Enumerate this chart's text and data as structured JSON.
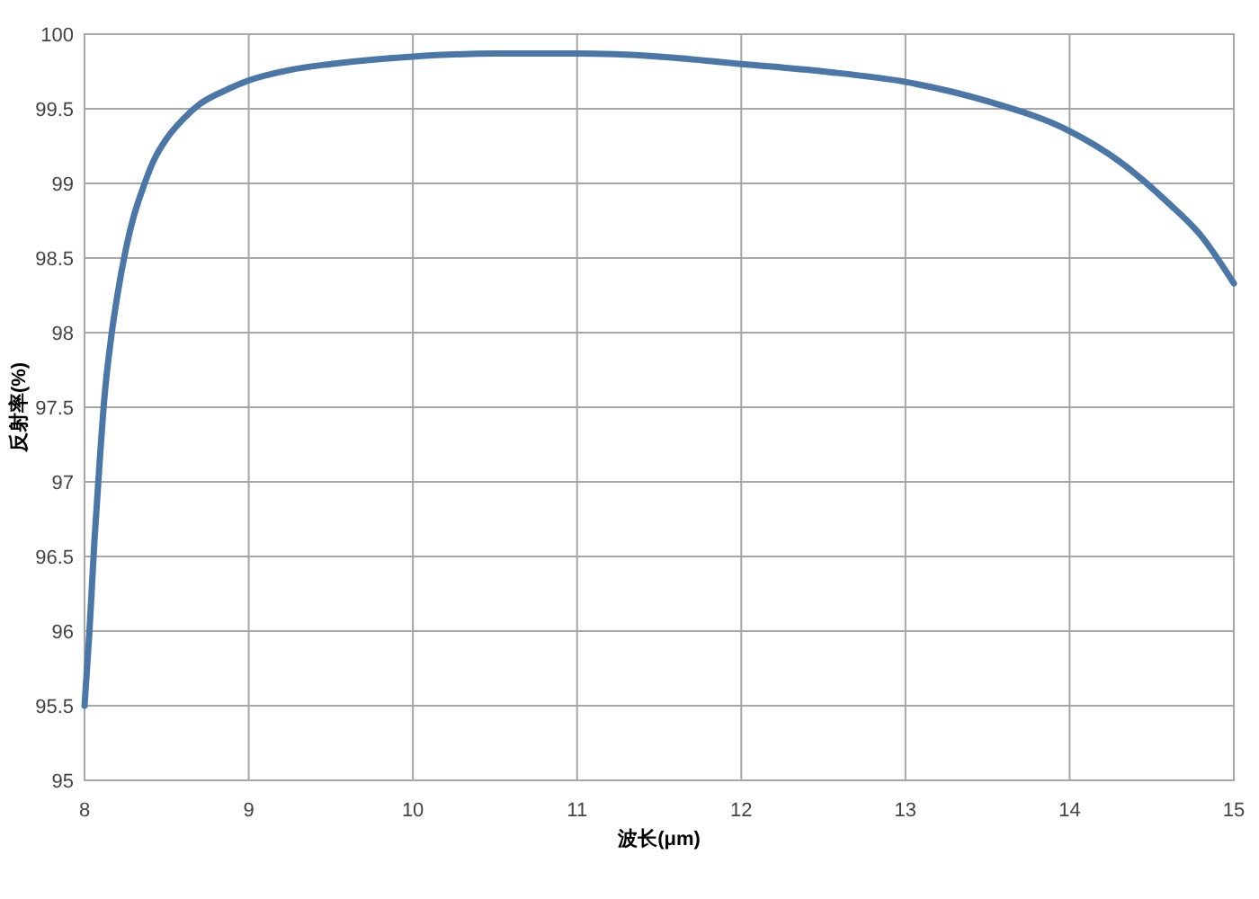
{
  "chart_data": {
    "type": "line",
    "xlabel": "波长(μm)",
    "ylabel": "反射率(%)",
    "x": [
      8,
      8.03,
      8.06,
      8.09,
      8.12,
      8.16,
      8.2,
      8.25,
      8.3,
      8.35,
      8.42,
      8.5,
      8.6,
      8.7,
      8.85,
      9,
      9.25,
      9.5,
      10,
      10.5,
      11,
      11.5,
      12,
      12.5,
      13,
      13.5,
      14,
      14.3,
      14.6,
      14.8,
      15
    ],
    "series": [
      {
        "color": "#4a76a8",
        "values": [
          95.5,
          96,
          96.6,
          97.1,
          97.55,
          97.95,
          98.25,
          98.55,
          98.78,
          98.95,
          99.15,
          99.3,
          99.43,
          99.53,
          99.62,
          99.69,
          99.76,
          99.8,
          99.85,
          99.87,
          99.87,
          99.85,
          99.8,
          99.75,
          99.68,
          99.55,
          99.35,
          99.15,
          98.87,
          98.65,
          98.33
        ]
      }
    ],
    "xlim": [
      8,
      15
    ],
    "xticks": [
      8,
      9,
      10,
      11,
      12,
      13,
      14,
      15
    ],
    "ylim": [
      95,
      100
    ],
    "yticks": [
      95,
      95.5,
      96,
      96.5,
      97,
      97.5,
      98,
      98.5,
      99,
      99.5,
      100
    ],
    "grid": true,
    "marker": "none",
    "line_style": "solid"
  }
}
